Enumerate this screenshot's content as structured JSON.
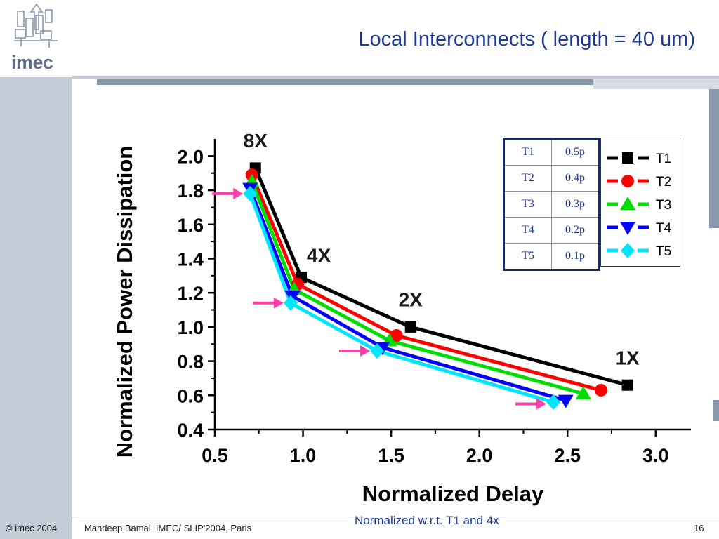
{
  "slide": {
    "title": "Local Interconnects ( length = 40 um)",
    "logo": "imec",
    "footer_left": "© imec 2004",
    "footer_mid": "Mandeep Bamal, IMEC/ SLIP'2004, Paris",
    "page_number": "16",
    "subnote": "Normalized w.r.t. T1 and 4x"
  },
  "table": {
    "rows": [
      [
        "T1",
        "0.5p"
      ],
      [
        "T2",
        "0.4p"
      ],
      [
        "T3",
        "0.3p"
      ],
      [
        "T4",
        "0.2p"
      ],
      [
        "T5",
        "0.1p"
      ]
    ]
  },
  "chart_data": {
    "type": "line",
    "title": "",
    "xlabel": "Normalized Delay",
    "ylabel": "Normalized Power Dissipation",
    "xlim": [
      0.5,
      3.2
    ],
    "ylim": [
      0.4,
      2.1
    ],
    "xticks": [
      "0.5",
      "1.0",
      "1.5",
      "2.0",
      "2.5",
      "3.0"
    ],
    "yticks": [
      "0.4",
      "0.6",
      "0.8",
      "1.0",
      "1.2",
      "1.4",
      "1.6",
      "1.8",
      "2.0"
    ],
    "grid": false,
    "legend_position": "top-right",
    "series": [
      {
        "name": "T1",
        "color": "#000000",
        "marker": "square",
        "x": [
          0.73,
          0.99,
          1.61,
          2.84
        ],
        "y": [
          1.93,
          1.29,
          1.0,
          0.66
        ]
      },
      {
        "name": "T2",
        "color": "#ff0000",
        "marker": "circle",
        "x": [
          0.71,
          0.97,
          1.53,
          2.69
        ],
        "y": [
          1.89,
          1.25,
          0.95,
          0.63
        ]
      },
      {
        "name": "T3",
        "color": "#00dd00",
        "marker": "triangle-up",
        "x": [
          0.71,
          0.95,
          1.49,
          2.59
        ],
        "y": [
          1.85,
          1.22,
          0.92,
          0.61
        ]
      },
      {
        "name": "T4",
        "color": "#0000ff",
        "marker": "triangle-down",
        "x": [
          0.7,
          0.94,
          1.45,
          2.49
        ],
        "y": [
          1.81,
          1.18,
          0.88,
          0.57
        ]
      },
      {
        "name": "T5",
        "color": "#00e5ff",
        "marker": "diamond",
        "x": [
          0.7,
          0.93,
          1.42,
          2.42
        ],
        "y": [
          1.78,
          1.14,
          0.86,
          0.56
        ]
      }
    ],
    "annotations": [
      {
        "text": "8X",
        "x": 0.73,
        "y": 2.05
      },
      {
        "text": "4X",
        "x": 1.09,
        "y": 1.38
      },
      {
        "text": "2X",
        "x": 1.61,
        "y": 1.12
      },
      {
        "text": "1X",
        "x": 2.84,
        "y": 0.78
      }
    ],
    "arrows": [
      {
        "x": 0.66,
        "y": 1.78
      },
      {
        "x": 0.89,
        "y": 1.14
      },
      {
        "x": 1.38,
        "y": 0.86
      },
      {
        "x": 2.38,
        "y": 0.55
      }
    ],
    "colors": {
      "arrow": "#ff3fa8",
      "label": "#1a1a1a"
    }
  }
}
